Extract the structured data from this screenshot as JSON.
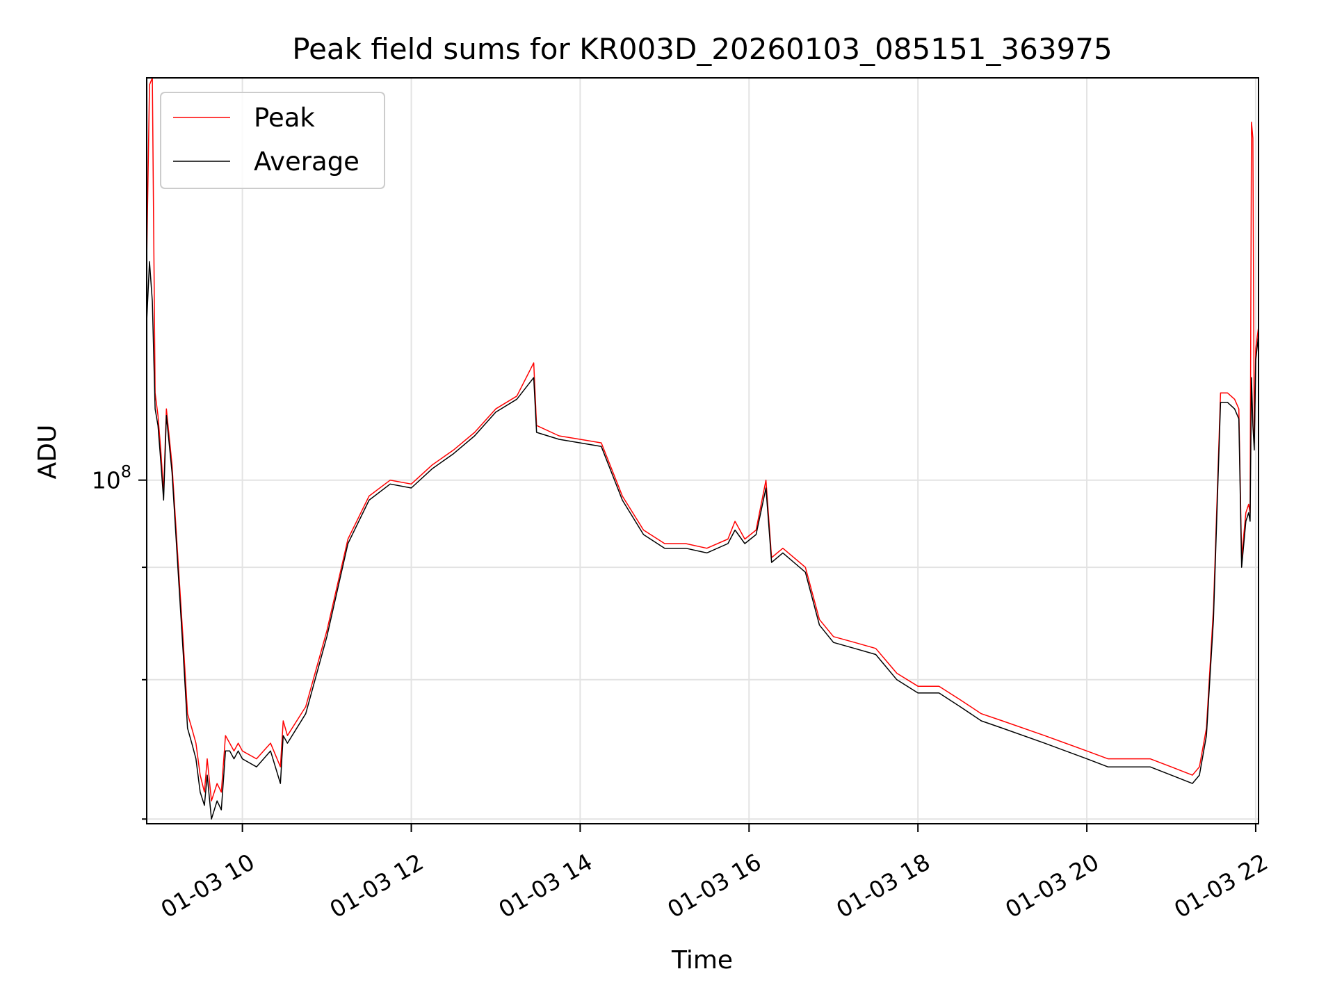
{
  "chart_data": {
    "type": "line",
    "title": "Peak field sums for KR003D_20260103_085151_363975",
    "xlabel": "Time",
    "ylabel": "ADU",
    "y_scale": "log",
    "xlim": [
      "01-03 08:52",
      "01-03 22:02"
    ],
    "ylim": [
      41500000,
      280000000
    ],
    "x_ticks": [
      {
        "value": "01-03 10:00",
        "label": "01-03 10"
      },
      {
        "value": "01-03 12:00",
        "label": "01-03 12"
      },
      {
        "value": "01-03 14:00",
        "label": "01-03 14"
      },
      {
        "value": "01-03 16:00",
        "label": "01-03 16"
      },
      {
        "value": "01-03 18:00",
        "label": "01-03 18"
      },
      {
        "value": "01-03 20:00",
        "label": "01-03 20"
      },
      {
        "value": "01-03 22:00",
        "label": "01-03 22"
      }
    ],
    "y_major_ticks": [
      {
        "value": 100000000,
        "label_base": "10",
        "label_exp": "8"
      }
    ],
    "y_minor_ticks": [
      42000000,
      60000000,
      80000000
    ],
    "grid": true,
    "legend_position": "upper-left",
    "series": [
      {
        "name": "Peak",
        "color": "#ff0000",
        "x": [
          "01-03 08:52",
          "01-03 08:54",
          "01-03 08:56",
          "01-03 08:58",
          "01-03 09:00",
          "01-03 09:02",
          "01-03 09:04",
          "01-03 09:06",
          "01-03 09:10",
          "01-03 09:15",
          "01-03 09:18",
          "01-03 09:21",
          "01-03 09:24",
          "01-03 09:27",
          "01-03 09:30",
          "01-03 09:33",
          "01-03 09:35",
          "01-03 09:38",
          "01-03 09:42",
          "01-03 09:45",
          "01-03 09:48",
          "01-03 09:51",
          "01-03 09:54",
          "01-03 09:57",
          "01-03 10:00",
          "01-03 10:10",
          "01-03 10:20",
          "01-03 10:27",
          "01-03 10:29",
          "01-03 10:32",
          "01-03 10:45",
          "01-03 11:00",
          "01-03 11:15",
          "01-03 11:30",
          "01-03 11:45",
          "01-03 12:00",
          "01-03 12:15",
          "01-03 12:30",
          "01-03 12:45",
          "01-03 13:00",
          "01-03 13:15",
          "01-03 13:27",
          "01-03 13:29",
          "01-03 13:45",
          "01-03 14:00",
          "01-03 14:15",
          "01-03 14:30",
          "01-03 14:45",
          "01-03 15:00",
          "01-03 15:15",
          "01-03 15:30",
          "01-03 15:45",
          "01-03 15:50",
          "01-03 15:57",
          "01-03 16:05",
          "01-03 16:12",
          "01-03 16:16",
          "01-03 16:24",
          "01-03 16:40",
          "01-03 16:50",
          "01-03 17:00",
          "01-03 17:15",
          "01-03 17:30",
          "01-03 17:45",
          "01-03 18:00",
          "01-03 18:15",
          "01-03 18:30",
          "01-03 18:45",
          "01-03 19:00",
          "01-03 19:30",
          "01-03 20:00",
          "01-03 20:15",
          "01-03 20:30",
          "01-03 20:45",
          "01-03 21:00",
          "01-03 21:15",
          "01-03 21:20",
          "01-03 21:25",
          "01-03 21:30",
          "01-03 21:35",
          "01-03 21:40",
          "01-03 21:45",
          "01-03 21:48",
          "01-03 21:50",
          "01-03 21:53",
          "01-03 21:55",
          "01-03 21:56",
          "01-03 21:57",
          "01-03 21:58",
          "01-03 21:59",
          "01-03 22:00",
          "01-03 22:02"
        ],
        "values": [
          175000000,
          275000000,
          280000000,
          125000000,
          118000000,
          108000000,
          97000000,
          120000000,
          104000000,
          78000000,
          66000000,
          55000000,
          53000000,
          51000000,
          47000000,
          45000000,
          49000000,
          44000000,
          46000000,
          45000000,
          52000000,
          51000000,
          50000000,
          51000000,
          50000000,
          49000000,
          51000000,
          48000000,
          54000000,
          52000000,
          56000000,
          68000000,
          86000000,
          96000000,
          100000000,
          99000000,
          104000000,
          108000000,
          113000000,
          120000000,
          124000000,
          135000000,
          115000000,
          112000000,
          111000000,
          110000000,
          96000000,
          88000000,
          85000000,
          85000000,
          84000000,
          86000000,
          90000000,
          86000000,
          88000000,
          100000000,
          82000000,
          84000000,
          80000000,
          70000000,
          67000000,
          66000000,
          65000000,
          61000000,
          59000000,
          59000000,
          57000000,
          55000000,
          54000000,
          52000000,
          50000000,
          49000000,
          49000000,
          49000000,
          48000000,
          47000000,
          48000000,
          53000000,
          72000000,
          125000000,
          125000000,
          123000000,
          120000000,
          82000000,
          92000000,
          94000000,
          92000000,
          250000000,
          240000000,
          110000000,
          140000000,
          148000000
        ]
      },
      {
        "name": "Average",
        "color": "#000000",
        "x": [
          "01-03 08:52",
          "01-03 08:54",
          "01-03 08:56",
          "01-03 08:58",
          "01-03 09:00",
          "01-03 09:02",
          "01-03 09:04",
          "01-03 09:06",
          "01-03 09:10",
          "01-03 09:15",
          "01-03 09:18",
          "01-03 09:21",
          "01-03 09:24",
          "01-03 09:27",
          "01-03 09:30",
          "01-03 09:33",
          "01-03 09:35",
          "01-03 09:38",
          "01-03 09:42",
          "01-03 09:45",
          "01-03 09:48",
          "01-03 09:51",
          "01-03 09:54",
          "01-03 09:57",
          "01-03 10:00",
          "01-03 10:10",
          "01-03 10:20",
          "01-03 10:27",
          "01-03 10:29",
          "01-03 10:32",
          "01-03 10:45",
          "01-03 11:00",
          "01-03 11:15",
          "01-03 11:30",
          "01-03 11:45",
          "01-03 12:00",
          "01-03 12:15",
          "01-03 12:30",
          "01-03 12:45",
          "01-03 13:00",
          "01-03 13:15",
          "01-03 13:27",
          "01-03 13:29",
          "01-03 13:45",
          "01-03 14:00",
          "01-03 14:15",
          "01-03 14:30",
          "01-03 14:45",
          "01-03 15:00",
          "01-03 15:15",
          "01-03 15:30",
          "01-03 15:45",
          "01-03 15:50",
          "01-03 15:57",
          "01-03 16:05",
          "01-03 16:12",
          "01-03 16:16",
          "01-03 16:24",
          "01-03 16:40",
          "01-03 16:50",
          "01-03 17:00",
          "01-03 17:15",
          "01-03 17:30",
          "01-03 17:45",
          "01-03 18:00",
          "01-03 18:15",
          "01-03 18:30",
          "01-03 18:45",
          "01-03 19:00",
          "01-03 19:30",
          "01-03 20:00",
          "01-03 20:15",
          "01-03 20:30",
          "01-03 20:45",
          "01-03 21:00",
          "01-03 21:15",
          "01-03 21:20",
          "01-03 21:25",
          "01-03 21:30",
          "01-03 21:35",
          "01-03 21:40",
          "01-03 21:45",
          "01-03 21:48",
          "01-03 21:50",
          "01-03 21:53",
          "01-03 21:55",
          "01-03 21:56",
          "01-03 21:57",
          "01-03 21:58",
          "01-03 21:59",
          "01-03 22:00",
          "01-03 22:02"
        ],
        "values": [
          150000000,
          175000000,
          158000000,
          120000000,
          115000000,
          105000000,
          95000000,
          118000000,
          102000000,
          76000000,
          64000000,
          53000000,
          51000000,
          49000000,
          45000000,
          43500000,
          47000000,
          42000000,
          44000000,
          43000000,
          50000000,
          50000000,
          49000000,
          50000000,
          49000000,
          48000000,
          50000000,
          46000000,
          52000000,
          51000000,
          55000000,
          67000000,
          85000000,
          95000000,
          99000000,
          98000000,
          103000000,
          107000000,
          112000000,
          119000000,
          123000000,
          130000000,
          113000000,
          111000000,
          110000000,
          109000000,
          95000000,
          87000000,
          84000000,
          84000000,
          83000000,
          85000000,
          88000000,
          85000000,
          87000000,
          98000000,
          81000000,
          83000000,
          79000000,
          69000000,
          66000000,
          65000000,
          64000000,
          60000000,
          58000000,
          58000000,
          56000000,
          54000000,
          53000000,
          51000000,
          49000000,
          48000000,
          48000000,
          48000000,
          47000000,
          46000000,
          47000000,
          52000000,
          70000000,
          122000000,
          122000000,
          120000000,
          117000000,
          80000000,
          90000000,
          92000000,
          90000000,
          130000000,
          115000000,
          108000000,
          136000000,
          145000000
        ]
      }
    ]
  }
}
